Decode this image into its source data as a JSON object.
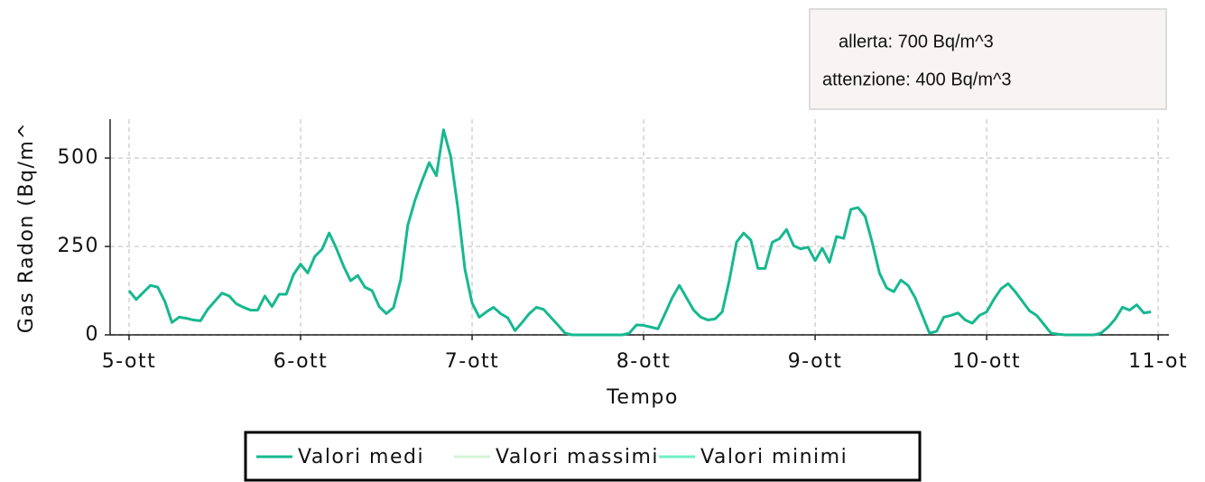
{
  "chart_data": {
    "type": "line",
    "ylabel": "Gas Radon (Bq/m^",
    "xlabel": "Tempo",
    "annotations": [
      {
        "text": "allerta: 700 Bq/m^3",
        "color": "#f0393c"
      },
      {
        "text": "attenzione: 400 Bq/m^3",
        "color": "#f5c21b"
      }
    ],
    "x": [
      0,
      1,
      2,
      3,
      4,
      5,
      6,
      7,
      8,
      9,
      10,
      11,
      12,
      13,
      14,
      15,
      16,
      17,
      18,
      19,
      20,
      21,
      22,
      23,
      24,
      25,
      26,
      27,
      28,
      29,
      30,
      31,
      32,
      33,
      34,
      35,
      36,
      37,
      38,
      39,
      40,
      41,
      42,
      43,
      44,
      45,
      46,
      47,
      48,
      49,
      50,
      51,
      52,
      53,
      54,
      55,
      56,
      57,
      58,
      59,
      60,
      61,
      62,
      63,
      64,
      65,
      66,
      67,
      68,
      69,
      70,
      71,
      72,
      73,
      74,
      75,
      76,
      77,
      78,
      79,
      80,
      81,
      82,
      83,
      84,
      85,
      86,
      87,
      88,
      89,
      90,
      91,
      92,
      93,
      94,
      95,
      96,
      97,
      98,
      99,
      100,
      101,
      102,
      103,
      104,
      105,
      106,
      107,
      108,
      109,
      110,
      111,
      112,
      113,
      114,
      115,
      116,
      117,
      118,
      119,
      120,
      121,
      122,
      123,
      124,
      125,
      126,
      127,
      128,
      129,
      130,
      131,
      132,
      133,
      134,
      135,
      136,
      137,
      138,
      139,
      140,
      141,
      142,
      143
    ],
    "series": [
      {
        "name": "Valori medi",
        "color": "#17b890",
        "values": [
          125,
          100,
          120,
          140,
          135,
          95,
          35,
          50,
          47,
          42,
          40,
          72,
          95,
          118,
          110,
          88,
          78,
          70,
          70,
          110,
          80,
          115,
          115,
          170,
          200,
          175,
          222,
          242,
          288,
          245,
          195,
          153,
          168,
          135,
          125,
          80,
          60,
          77,
          155,
          310,
          380,
          436,
          487,
          450,
          580,
          505,
          360,
          185,
          90,
          50,
          65,
          78,
          60,
          48,
          12,
          35,
          60,
          78,
          72,
          50,
          28,
          5,
          0,
          0,
          0,
          0,
          0,
          0,
          0,
          0,
          5,
          28,
          27,
          22,
          17,
          60,
          105,
          140,
          105,
          70,
          50,
          42,
          45,
          65,
          155,
          262,
          288,
          268,
          188,
          188,
          262,
          272,
          298,
          252,
          243,
          248,
          210,
          245,
          205,
          278,
          273,
          355,
          360,
          335,
          260,
          175,
          133,
          122,
          155,
          140,
          105,
          55,
          5,
          10,
          50,
          55,
          62,
          42,
          33,
          55,
          65,
          100,
          130,
          145,
          122,
          95,
          68,
          55,
          30,
          5,
          2,
          0,
          0,
          0,
          0,
          0,
          5,
          22,
          45,
          78,
          70,
          85,
          62,
          65
        ]
      },
      {
        "name": "Valori massimi",
        "color": "#d6f5d6"
      },
      {
        "name": "Valori minimi",
        "color": "#6ef0c4"
      }
    ],
    "xlim": [
      -2.65,
      145.5
    ],
    "xticks": [
      {
        "value": 0,
        "label": "5-ott"
      },
      {
        "value": 24,
        "label": "6-ott"
      },
      {
        "value": 48,
        "label": "7-ott"
      },
      {
        "value": 72,
        "label": "8-ott"
      },
      {
        "value": 96,
        "label": "9-ott"
      },
      {
        "value": 120,
        "label": "10-ott"
      },
      {
        "value": 144,
        "label": "11-ot"
      }
    ],
    "ylim": [
      0,
      610
    ],
    "yticks": [
      0,
      250,
      500
    ],
    "grid": true
  }
}
